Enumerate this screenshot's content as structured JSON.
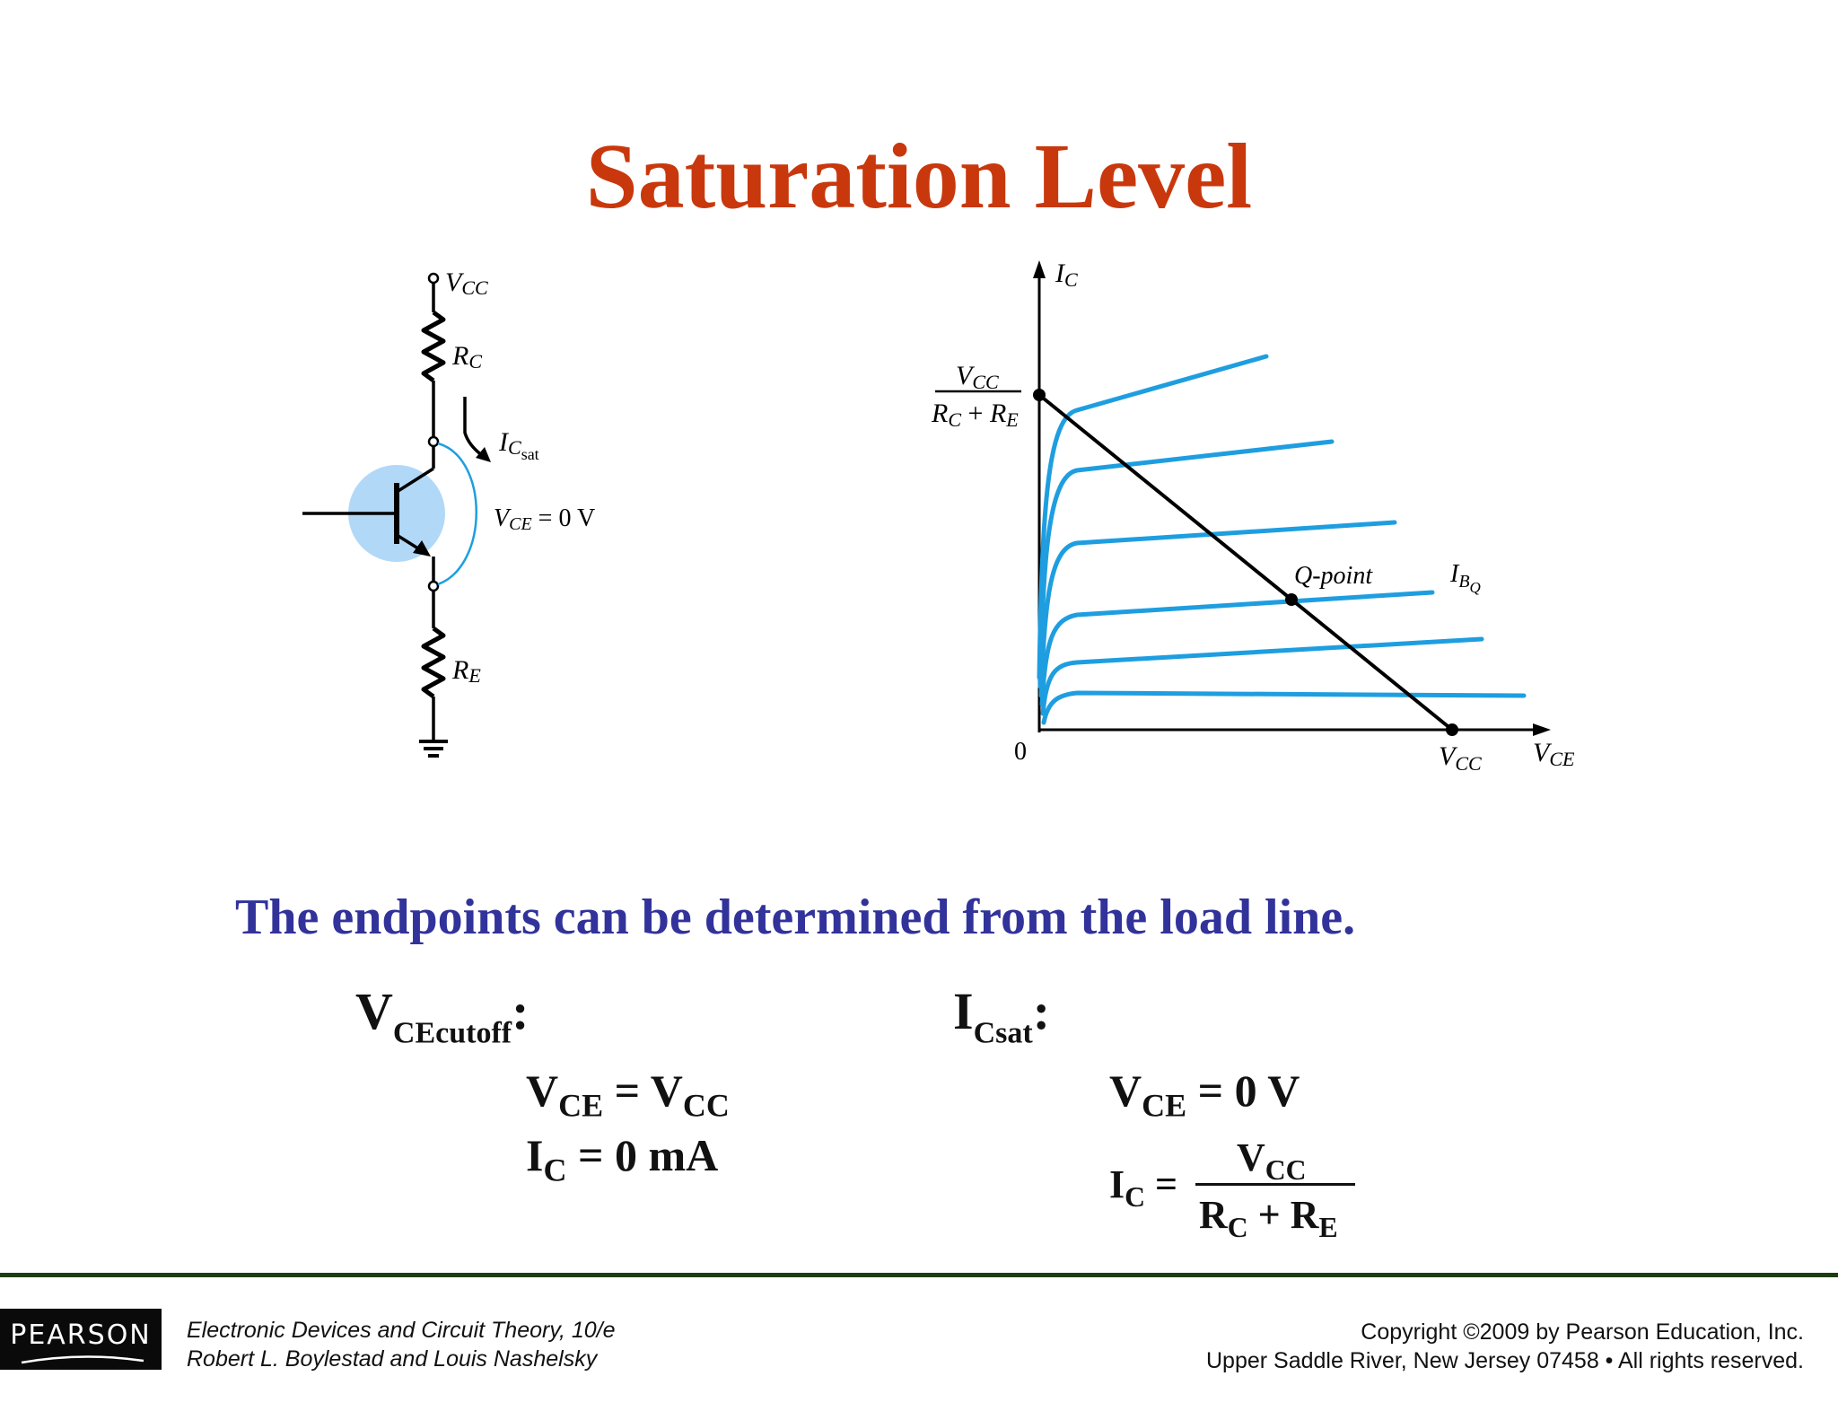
{
  "title": "Saturation Level",
  "circuit": {
    "vcc": "V",
    "vcc_sub": "CC",
    "rc": "R",
    "rc_sub": "C",
    "re": "R",
    "re_sub": "E",
    "ic": "I",
    "ic_sub": "C",
    "ic_subsub": "sat",
    "vce": "V",
    "vce_sub": "CE",
    "vce_value": " = 0 V"
  },
  "graph": {
    "y_axis": "I",
    "y_axis_sub": "C",
    "x_axis": "V",
    "x_axis_sub": "CE",
    "origin": "0",
    "y_intercept_num": "V",
    "y_intercept_num_sub": "CC",
    "y_intercept_den_a": "R",
    "y_intercept_den_a_sub": "C",
    "y_intercept_plus": " + ",
    "y_intercept_den_b": "R",
    "y_intercept_den_b_sub": "E",
    "x_intercept": "V",
    "x_intercept_sub": "CC",
    "q_point": "Q-point",
    "ib": "I",
    "ib_sub": "B",
    "ib_subsub": "Q",
    "curve_color": "#1e9ee0"
  },
  "subtitle": "The endpoints can be determined from the load line.",
  "cutoff": {
    "heading": "V",
    "heading_sub": "CEcutoff",
    "heading_colon": ":",
    "line1_a": "V",
    "line1_a_sub": "CE",
    "line1_eq": " = ",
    "line1_b": "V",
    "line1_b_sub": "CC",
    "line2_a": "I",
    "line2_a_sub": "C",
    "line2_eq": " = 0 mA"
  },
  "saturation": {
    "heading": "I",
    "heading_sub": "Csat",
    "heading_colon": ":",
    "line1_a": "V",
    "line1_a_sub": "CE",
    "line1_eq": " = 0 V",
    "line2_a": "I",
    "line2_a_sub": "C",
    "line2_eq": " = ",
    "num": "V",
    "num_sub": "CC",
    "den_a": "R",
    "den_a_sub": "C",
    "den_plus": " + ",
    "den_b": "R",
    "den_b_sub": "E"
  },
  "footer": {
    "logo": "PEARSON",
    "book": "Electronic Devices and Circuit Theory, 10/e",
    "authors": "Robert L. Boylestad and Louis Nashelsky",
    "copyright": "Copyright ©2009 by Pearson Education, Inc.",
    "address": "Upper Saddle River, New Jersey 07458 • All rights reserved."
  }
}
